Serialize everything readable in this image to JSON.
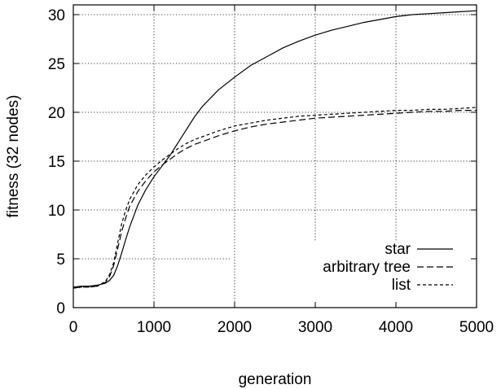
{
  "chart_data": {
    "type": "line",
    "title": "",
    "xlabel": "generation",
    "ylabel": "fitness (32 nodes)",
    "xlim": [
      0,
      5000
    ],
    "ylim": [
      0,
      31
    ],
    "xticks": [
      0,
      1000,
      2000,
      3000,
      4000,
      5000
    ],
    "yticks": [
      0,
      5,
      10,
      15,
      20,
      25,
      30
    ],
    "grid": true,
    "legend_position": "bottom-right",
    "series": [
      {
        "name": "star",
        "style": "solid",
        "x": [
          0,
          100,
          200,
          300,
          400,
          450,
          500,
          550,
          600,
          650,
          700,
          800,
          900,
          1000,
          1100,
          1200,
          1300,
          1400,
          1500,
          1600,
          1800,
          2000,
          2200,
          2400,
          2600,
          2800,
          3000,
          3200,
          3400,
          3600,
          3800,
          4000,
          4200,
          4400,
          4600,
          4800,
          5000
        ],
        "y": [
          2.1,
          2.2,
          2.2,
          2.3,
          2.5,
          2.8,
          3.3,
          4.3,
          5.6,
          7.0,
          8.3,
          10.5,
          12.1,
          13.4,
          14.5,
          15.6,
          16.9,
          18.2,
          19.5,
          20.6,
          22.3,
          23.6,
          24.8,
          25.7,
          26.6,
          27.3,
          27.9,
          28.4,
          28.8,
          29.2,
          29.5,
          29.8,
          30.0,
          30.1,
          30.2,
          30.3,
          30.4
        ]
      },
      {
        "name": "arbitrary tree",
        "style": "dashed",
        "x": [
          0,
          100,
          200,
          300,
          400,
          450,
          500,
          550,
          600,
          650,
          700,
          800,
          900,
          1000,
          1100,
          1200,
          1300,
          1400,
          1500,
          1600,
          1800,
          2000,
          2200,
          2400,
          2600,
          2800,
          3000,
          3200,
          3400,
          3600,
          3800,
          4000,
          4200,
          4400,
          4600,
          4800,
          5000
        ],
        "y": [
          2.0,
          2.1,
          2.1,
          2.2,
          2.6,
          3.2,
          4.3,
          6.0,
          7.8,
          9.2,
          10.4,
          11.9,
          13.0,
          13.9,
          14.6,
          15.2,
          15.8,
          16.3,
          16.7,
          17.0,
          17.6,
          18.1,
          18.5,
          18.8,
          19.0,
          19.2,
          19.4,
          19.5,
          19.6,
          19.7,
          19.8,
          19.9,
          20.0,
          20.1,
          20.1,
          20.2,
          20.2
        ]
      },
      {
        "name": "list",
        "style": "dotted",
        "x": [
          0,
          100,
          200,
          300,
          400,
          450,
          500,
          550,
          600,
          650,
          700,
          800,
          900,
          1000,
          1100,
          1200,
          1300,
          1400,
          1500,
          1600,
          1800,
          2000,
          2200,
          2400,
          2600,
          2800,
          3000,
          3200,
          3400,
          3600,
          3800,
          4000,
          4200,
          4400,
          4600,
          4800,
          5000
        ],
        "y": [
          2.0,
          2.1,
          2.1,
          2.2,
          2.7,
          3.4,
          4.6,
          6.6,
          8.6,
          10.0,
          11.1,
          12.6,
          13.6,
          14.4,
          15.1,
          15.7,
          16.3,
          16.8,
          17.2,
          17.5,
          18.1,
          18.6,
          18.9,
          19.2,
          19.4,
          19.6,
          19.7,
          19.8,
          19.9,
          20.0,
          20.1,
          20.2,
          20.2,
          20.3,
          20.3,
          20.4,
          20.5
        ]
      }
    ]
  }
}
